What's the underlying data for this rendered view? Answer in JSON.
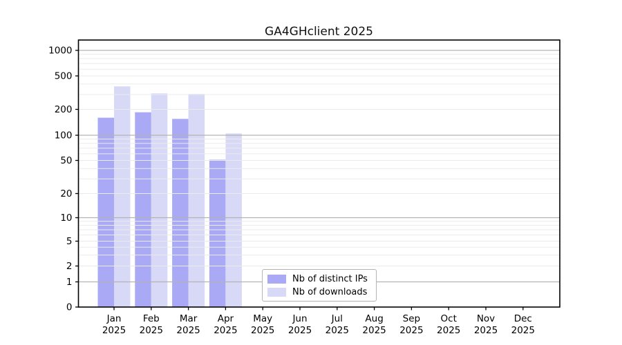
{
  "window": {
    "title": "GA4GHclient 2025"
  },
  "chart_data": {
    "type": "bar",
    "title": "GA4GHclient 2025",
    "x_categories": [
      "Jan",
      "Feb",
      "Mar",
      "Apr",
      "May",
      "Jun",
      "Jul",
      "Aug",
      "Sep",
      "Oct",
      "Nov",
      "Dec"
    ],
    "x_year": "2025",
    "series": [
      {
        "name": "Nb of distinct IPs",
        "color": "#a9a9f5",
        "values": [
          160,
          185,
          155,
          51,
          0,
          0,
          0,
          0,
          0,
          0,
          0,
          0
        ]
      },
      {
        "name": "Nb of downloads",
        "color": "#d8d8f7",
        "values": [
          375,
          310,
          305,
          105,
          0,
          0,
          0,
          0,
          0,
          0,
          0,
          0
        ]
      }
    ],
    "yscale": "symlog",
    "ylim": [
      0,
      1000
    ],
    "y_ticks": [
      0,
      1,
      2,
      5,
      10,
      20,
      50,
      100,
      200,
      500,
      1000
    ],
    "y_major_gridlines": [
      1,
      10,
      100,
      1000
    ],
    "y_minor_gridlines": [
      2,
      3,
      4,
      5,
      6,
      7,
      8,
      9,
      20,
      30,
      40,
      50,
      60,
      70,
      80,
      90,
      200,
      300,
      400,
      500,
      600,
      700,
      800,
      900
    ],
    "grid": "both",
    "legend_position": "lower center"
  },
  "colors": {
    "distinct_ips": "#a9a9f5",
    "downloads": "#d8d8f7",
    "major_grid": "#b3b3b3",
    "minor_grid": "#ebebeb",
    "axis": "#000000",
    "text": "#000000",
    "background": "#ffffff"
  }
}
